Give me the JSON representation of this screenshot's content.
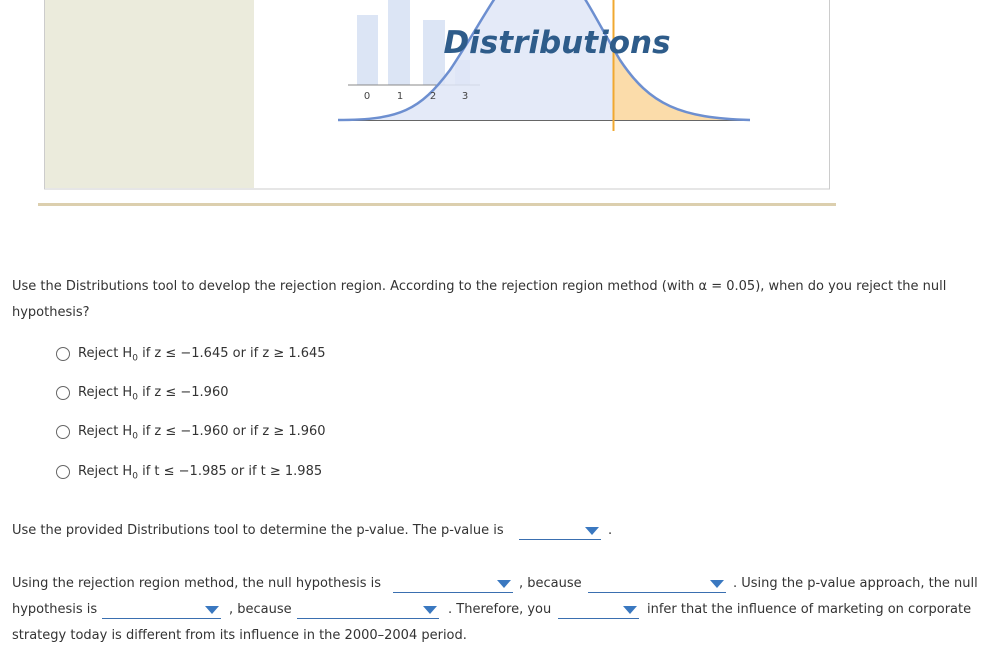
{
  "banner": {
    "title": "Distributions",
    "axis_labels": [
      "0",
      "1",
      "2",
      "3"
    ]
  },
  "question1": {
    "text": "Use the Distributions tool to develop the rejection region. According to the rejection region method (with α = 0.05), when do you reject the null hypothesis?",
    "options": [
      {
        "prefix": "Reject H",
        "sub": "0",
        "rest": " if z ≤ −1.645 or if z ≥ 1.645"
      },
      {
        "prefix": "Reject H",
        "sub": "0",
        "rest": " if z ≤ −1.960"
      },
      {
        "prefix": "Reject H",
        "sub": "0",
        "rest": " if z ≤ −1.960 or if z ≥ 1.960"
      },
      {
        "prefix": "Reject H",
        "sub": "0",
        "rest": " if t ≤ −1.985 or if t ≥ 1.985"
      }
    ]
  },
  "question2": {
    "before": "Use the provided Distributions tool to determine the p-value. The p-value is",
    "after": "."
  },
  "question3": {
    "parts": [
      "Using the rejection region method, the null hypothesis is",
      ", because",
      ". Using the p-value approach, the null",
      "hypothesis is",
      ", because",
      ". Therefore, you",
      "infer that the influence of marketing on corporate",
      "strategy today is different from its influence in the 2000–2004 period."
    ]
  }
}
